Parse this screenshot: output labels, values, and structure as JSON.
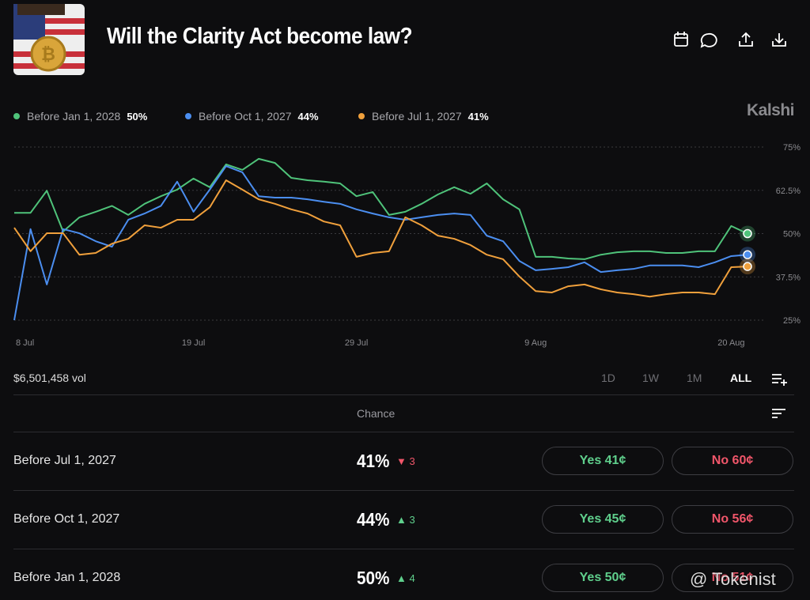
{
  "header": {
    "title": "Will the Clarity Act become law?"
  },
  "brand": "Kalshi",
  "chart_data": {
    "type": "line",
    "categories": [
      "8 Jul",
      null,
      null,
      null,
      null,
      null,
      null,
      null,
      null,
      null,
      null,
      "19 Jul",
      null,
      null,
      null,
      null,
      null,
      null,
      null,
      null,
      null,
      "29 Jul",
      null,
      null,
      null,
      null,
      null,
      null,
      null,
      null,
      null,
      null,
      "9 Aug",
      null,
      null,
      null,
      null,
      null,
      null,
      null,
      null,
      null,
      null,
      null,
      "20 Aug",
      null
    ],
    "series": [
      {
        "name": "Before Jan 1, 2028",
        "current": "50%",
        "color": "#4fc37a",
        "values": [
          56,
          56,
          62.4,
          50.6,
          54.7,
          56.3,
          58,
          55.4,
          58.6,
          60.8,
          62.7,
          65.9,
          63.4,
          70,
          68.4,
          71.6,
          70.4,
          66.1,
          65.4,
          65,
          64.5,
          60.8,
          62,
          55.4,
          56.3,
          58.6,
          61.3,
          63.4,
          61.5,
          64.5,
          59.9,
          57,
          43.3,
          43.3,
          42.8,
          42.6,
          43.9,
          44.6,
          44.9,
          44.9,
          44.4,
          44.4,
          44.9,
          44.9,
          52.2,
          50
        ]
      },
      {
        "name": "Before Oct 1, 2027",
        "current": "44%",
        "color": "#4b8ef0",
        "values": [
          25,
          51.3,
          35.3,
          51.3,
          50.1,
          47.8,
          46.2,
          54,
          55.8,
          58,
          65,
          56.3,
          62.7,
          69.5,
          67.7,
          60.8,
          60.4,
          60.4,
          59.9,
          59.2,
          58.6,
          57,
          55.8,
          54.7,
          54,
          54.7,
          55.4,
          55.8,
          55.4,
          49.4,
          47.8,
          42.1,
          39.4,
          39.8,
          40.3,
          41.7,
          38.9,
          39.4,
          39.8,
          40.8,
          40.8,
          40.8,
          40.3,
          41.7,
          43.5,
          43.9
        ]
      },
      {
        "name": "Before Jul 1, 2027",
        "current": "41%",
        "color": "#f0a03c",
        "values": [
          51.7,
          44.9,
          50.1,
          50.1,
          43.9,
          44.4,
          47.1,
          48.5,
          52.4,
          51.7,
          54,
          54,
          57.6,
          65.4,
          62.7,
          59.9,
          58.6,
          57,
          55.8,
          53.5,
          52.4,
          43.3,
          44.4,
          44.9,
          54.7,
          52.4,
          49.4,
          48.5,
          46.7,
          43.9,
          42.6,
          37.6,
          33.4,
          33,
          34.8,
          35.3,
          33.9,
          33,
          32.5,
          31.8,
          32.5,
          33,
          33,
          32.5,
          40.3,
          40.5
        ]
      }
    ],
    "ylim": [
      25,
      75
    ],
    "yticks": [
      {
        "value": 25,
        "label": "25%"
      },
      {
        "value": 37.5,
        "label": "37.5%"
      },
      {
        "value": 50,
        "label": "50%"
      },
      {
        "value": 62.5,
        "label": "62.5%"
      },
      {
        "value": 75,
        "label": "75%"
      }
    ],
    "grid": true
  },
  "volume": "$6,501,458 vol",
  "ranges": [
    "1D",
    "1W",
    "1M",
    "ALL"
  ],
  "table": {
    "header": "Chance",
    "rows": [
      {
        "name": "Before Jul 1, 2027",
        "chance": "41%",
        "direction": "down",
        "change": "3",
        "yes": "Yes 41¢",
        "no": "No 60¢"
      },
      {
        "name": "Before Oct 1, 2027",
        "chance": "44%",
        "direction": "up",
        "change": "3",
        "yes": "Yes 45¢",
        "no": "No 56¢"
      },
      {
        "name": "Before Jan 1, 2028",
        "chance": "50%",
        "direction": "up",
        "change": "4",
        "yes": "Yes 50¢",
        "no": "No 51¢"
      }
    ]
  },
  "watermark": "@ Tokenist"
}
